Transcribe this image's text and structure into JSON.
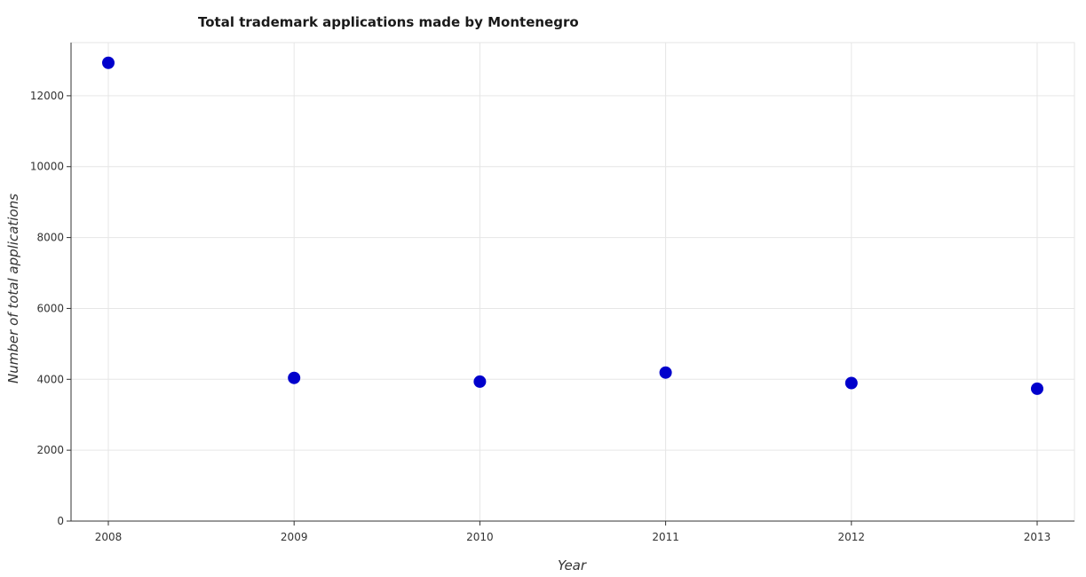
{
  "chart_data": {
    "type": "scatter",
    "title": "Total trademark applications made by Montenegro",
    "xlabel": "Year",
    "ylabel": "Number of total applications",
    "categories": [
      "2008",
      "2009",
      "2010",
      "2011",
      "2012",
      "2013"
    ],
    "values": [
      12930,
      4040,
      3935,
      4190,
      3895,
      3735
    ],
    "yticks": [
      0,
      2000,
      4000,
      6000,
      8000,
      10000,
      12000
    ],
    "ytick_labels": [
      "0",
      "2000",
      "4000",
      "6000",
      "8000",
      "10000",
      "12000"
    ],
    "ylim": [
      0,
      13500
    ],
    "grid": true,
    "marker_color": "#0000cc"
  }
}
